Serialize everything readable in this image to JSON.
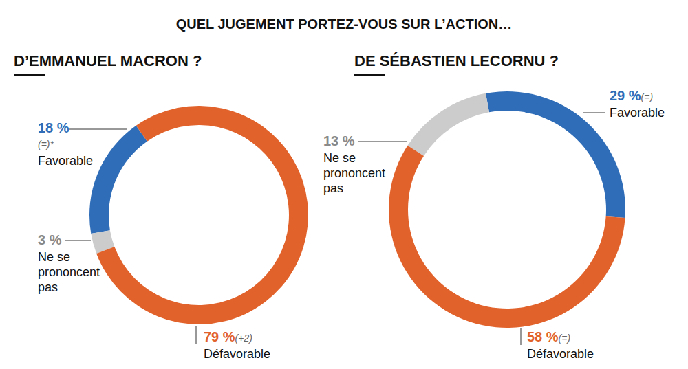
{
  "title": "QUEL JUGEMENT PORTEZ-VOUS SUR L’ACTION…",
  "chart_data": [
    {
      "type": "donut",
      "title": "D’EMMANUEL MACRON ?",
      "categories": [
        "Favorable",
        "Ne se prononcent pas",
        "Défavorable"
      ],
      "values": [
        18,
        3,
        79
      ],
      "value_labels": [
        "18 %",
        "3 %",
        "79 %"
      ],
      "annotations": [
        "(=)*",
        null,
        "(+2)"
      ],
      "colors": [
        "#2f6db8",
        "#cccccc",
        "#e2622b"
      ],
      "data_labels": true
    },
    {
      "type": "donut",
      "title": "DE SÉBASTIEN LECORNU ?",
      "categories": [
        "Favorable",
        "Ne se prononcent pas",
        "Défavorable"
      ],
      "values": [
        29,
        13,
        58
      ],
      "value_labels": [
        "29 %",
        "13 %",
        "58 %"
      ],
      "annotations": [
        "(=)",
        null,
        "(=)"
      ],
      "colors": [
        "#2f6db8",
        "#cccccc",
        "#e2622b"
      ],
      "data_labels": true
    }
  ]
}
